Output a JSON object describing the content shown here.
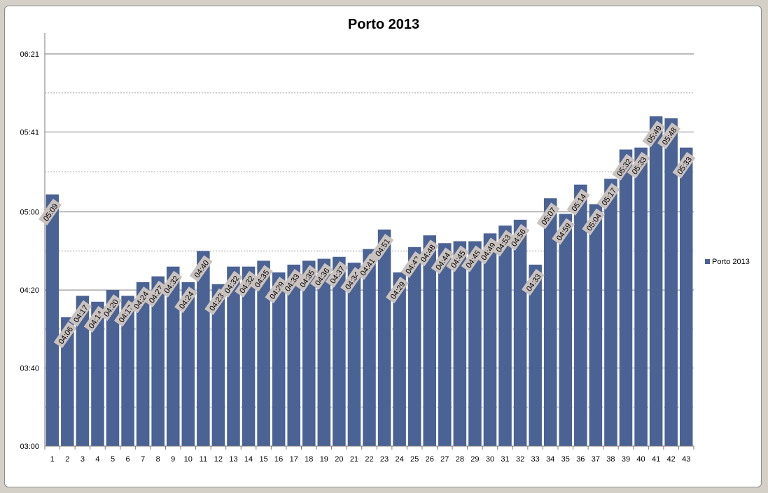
{
  "chart_data": {
    "type": "bar",
    "title": "Porto 2013",
    "xlabel": "",
    "ylabel": "",
    "legend": {
      "position": "right",
      "entries": [
        "Porto 2013"
      ]
    },
    "grid": true,
    "ylim": [
      "03:00",
      "06:21"
    ],
    "y_ticks": [
      "03:00",
      "03:40",
      "04:20",
      "05:00",
      "05:41",
      "06:21"
    ],
    "categories": [
      "1",
      "2",
      "3",
      "4",
      "5",
      "6",
      "7",
      "8",
      "9",
      "10",
      "11",
      "12",
      "13",
      "14",
      "15",
      "16",
      "17",
      "18",
      "19",
      "20",
      "21",
      "22",
      "23",
      "24",
      "25",
      "26",
      "27",
      "28",
      "29",
      "30",
      "31",
      "32",
      "33",
      "34",
      "35",
      "36",
      "37",
      "38",
      "39",
      "40",
      "41",
      "42",
      "43"
    ],
    "series": [
      {
        "name": "Porto 2013",
        "color": "#4a6294",
        "values": [
          "05:09",
          "04:06",
          "04:17",
          "04:14",
          "04:20",
          "04:17",
          "04:24",
          "04:27",
          "04:32",
          "04:24",
          "04:40",
          "04:23",
          "04:32",
          "04:32",
          "04:35",
          "04:29",
          "04:33",
          "04:35",
          "04:36",
          "04:37",
          "04:34",
          "04:41",
          "04:51",
          "04:29",
          "04:42",
          "04:48",
          "04:44",
          "04:45",
          "04:45",
          "04:49",
          "04:53",
          "04:56",
          "04:33",
          "05:07",
          "04:59",
          "05:14",
          "05:04",
          "05:17",
          "05:32",
          "05:33",
          "05:49",
          "05:48",
          "05:33"
        ]
      }
    ]
  }
}
